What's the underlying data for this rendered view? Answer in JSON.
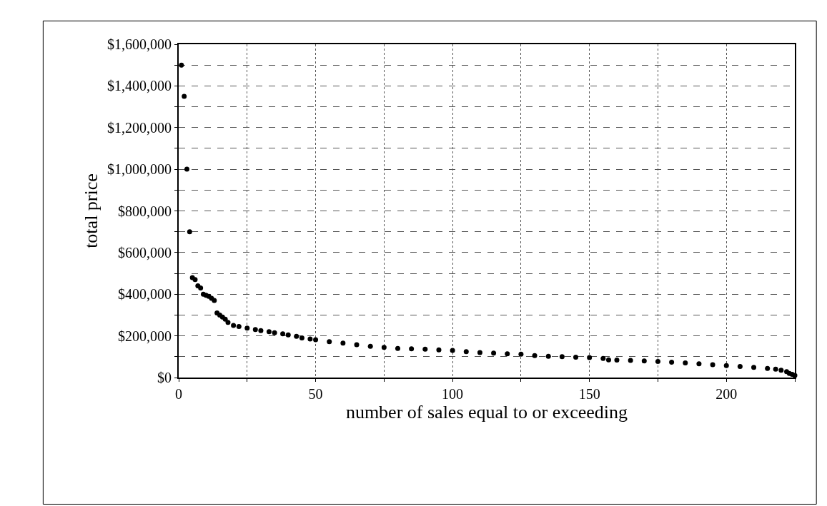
{
  "chart_data": {
    "type": "scatter",
    "xlabel": "number of sales equal to or exceeding",
    "ylabel": "total price",
    "x": [
      1,
      2,
      3,
      4,
      5,
      6,
      7,
      8,
      9,
      10,
      11,
      12,
      13,
      14,
      15,
      16,
      17,
      18,
      20,
      22,
      25,
      28,
      30,
      33,
      35,
      38,
      40,
      43,
      45,
      48,
      50,
      55,
      60,
      65,
      70,
      75,
      80,
      85,
      90,
      95,
      100,
      105,
      110,
      115,
      120,
      125,
      130,
      135,
      140,
      145,
      150,
      155,
      157,
      160,
      165,
      170,
      175,
      180,
      185,
      190,
      195,
      200,
      205,
      210,
      215,
      218,
      220,
      222,
      223,
      224,
      225
    ],
    "values": [
      1500000,
      1350000,
      1000000,
      700000,
      480000,
      470000,
      440000,
      430000,
      400000,
      395000,
      390000,
      380000,
      370000,
      310000,
      300000,
      290000,
      280000,
      265000,
      250000,
      245000,
      237000,
      230000,
      225000,
      220000,
      215000,
      210000,
      205000,
      198000,
      190000,
      185000,
      182000,
      172000,
      165000,
      158000,
      150000,
      145000,
      140000,
      138000,
      136000,
      133000,
      130000,
      124000,
      120000,
      117000,
      114000,
      112000,
      105000,
      102000,
      100000,
      98000,
      96000,
      92000,
      85000,
      84000,
      82000,
      80000,
      77000,
      74000,
      70000,
      66000,
      62000,
      57000,
      53000,
      49000,
      44000,
      40000,
      35000,
      28000,
      20000,
      15000,
      10000
    ],
    "color": "#000000",
    "marker": "circle",
    "xlim": [
      0,
      225
    ],
    "xticks": [
      0,
      {
        "value": 25,
        "label": null
      },
      50,
      {
        "value": 75,
        "label": null
      },
      100,
      {
        "value": 125,
        "label": null
      },
      150,
      {
        "value": 175,
        "label": null
      },
      200,
      {
        "value": 225,
        "label": null
      }
    ],
    "ylim": [
      0,
      1600000
    ],
    "yticks": [
      {
        "value": 0,
        "label": "$0"
      },
      {
        "value": 100000,
        "label": null
      },
      {
        "value": 200000,
        "label": "$200,000"
      },
      {
        "value": 300000,
        "label": null
      },
      {
        "value": 400000,
        "label": "$400,000"
      },
      {
        "value": 500000,
        "label": null
      },
      {
        "value": 600000,
        "label": "$600,000"
      },
      {
        "value": 700000,
        "label": null
      },
      {
        "value": 800000,
        "label": "$800,000"
      },
      {
        "value": 900000,
        "label": null
      },
      {
        "value": 1000000,
        "label": "$1,000,000"
      },
      {
        "value": 1100000,
        "label": null
      },
      {
        "value": 1200000,
        "label": "$1,200,000"
      },
      {
        "value": 1300000,
        "label": null
      },
      {
        "value": 1400000,
        "label": "$1,400,000"
      },
      {
        "value": 1500000,
        "label": null
      },
      {
        "value": 1600000,
        "label": "$1,600,000"
      }
    ],
    "grid": true,
    "legend": false
  }
}
